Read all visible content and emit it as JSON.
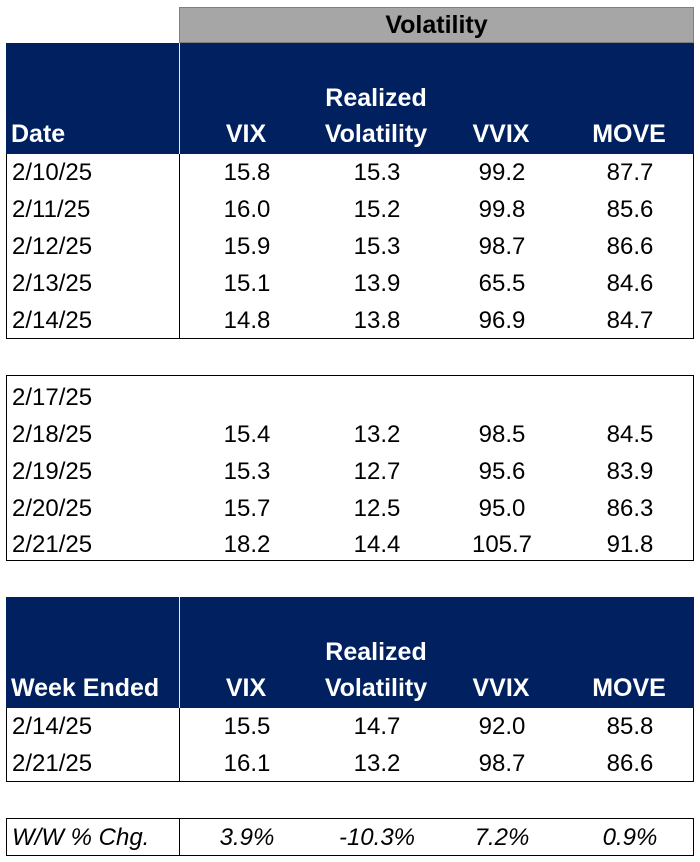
{
  "banner": "Volatility",
  "headers": {
    "date": "Date",
    "vix": "VIX",
    "realized_1": "Realized",
    "realized_2": "Volatility",
    "vvix": "VVIX",
    "move": "MOVE"
  },
  "week1": [
    {
      "date": "2/10/25",
      "vix": "15.8",
      "rv": "15.3",
      "vvix": "99.2",
      "move": "87.7"
    },
    {
      "date": "2/11/25",
      "vix": "16.0",
      "rv": "15.2",
      "vvix": "99.8",
      "move": "85.6"
    },
    {
      "date": "2/12/25",
      "vix": "15.9",
      "rv": "15.3",
      "vvix": "98.7",
      "move": "86.6"
    },
    {
      "date": "2/13/25",
      "vix": "15.1",
      "rv": "13.9",
      "vvix": "65.5",
      "move": "84.6"
    },
    {
      "date": "2/14/25",
      "vix": "14.8",
      "rv": "13.8",
      "vvix": "96.9",
      "move": "84.7"
    }
  ],
  "week2": [
    {
      "date": "2/17/25",
      "vix": "",
      "rv": "",
      "vvix": "",
      "move": ""
    },
    {
      "date": "2/18/25",
      "vix": "15.4",
      "rv": "13.2",
      "vvix": "98.5",
      "move": "84.5"
    },
    {
      "date": "2/19/25",
      "vix": "15.3",
      "rv": "12.7",
      "vvix": "95.6",
      "move": "83.9"
    },
    {
      "date": "2/20/25",
      "vix": "15.7",
      "rv": "12.5",
      "vvix": "95.0",
      "move": "86.3"
    },
    {
      "date": "2/21/25",
      "vix": "18.2",
      "rv": "14.4",
      "vvix": "105.7",
      "move": "91.8"
    }
  ],
  "weekly_headers": {
    "date": "Week Ended",
    "vix": "VIX",
    "realized_1": "Realized",
    "realized_2": "Volatility",
    "vvix": "VVIX",
    "move": "MOVE"
  },
  "weekly": [
    {
      "date": "2/14/25",
      "vix": "15.5",
      "rv": "14.7",
      "vvix": "92.0",
      "move": "85.8"
    },
    {
      "date": "2/21/25",
      "vix": "16.1",
      "rv": "13.2",
      "vvix": "98.7",
      "move": "86.6"
    }
  ],
  "change": {
    "label": "W/W % Chg.",
    "vix": "3.9%",
    "rv": "-10.3%",
    "vvix": "7.2%",
    "move": "0.9%"
  }
}
